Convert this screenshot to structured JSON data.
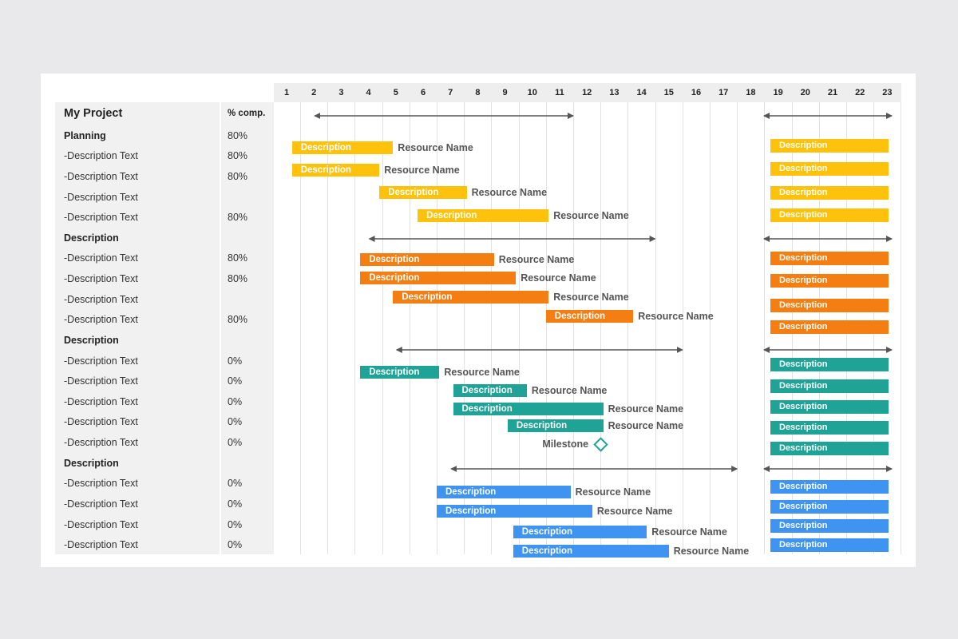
{
  "project": {
    "title": "My Project",
    "pct_header": "% comp."
  },
  "days": [
    "1",
    "2",
    "3",
    "4",
    "5",
    "6",
    "7",
    "8",
    "9",
    "10",
    "11",
    "12",
    "13",
    "14",
    "15",
    "16",
    "17",
    "18",
    "19",
    "20",
    "21",
    "22",
    "23"
  ],
  "colors": {
    "yellow": "#fec20c",
    "orange": "#f57e12",
    "teal": "#1ea396",
    "blue": "#3f93f1",
    "arrow": "#555555"
  },
  "groups": [
    {
      "name": "Planning",
      "pct": "80%",
      "color": "yellow",
      "span": [
        2,
        11
      ],
      "tasks": [
        {
          "label": "-Description Text",
          "pct": "80%",
          "bar": "Description",
          "resource": "Resource Name"
        },
        {
          "label": "-Description Text",
          "pct": "80%",
          "bar": "Description",
          "resource": "Resource Name"
        },
        {
          "label": "-Description Text",
          "pct": "",
          "bar": "Description",
          "resource": "Resource Name"
        },
        {
          "label": "-Description Text",
          "pct": "80%",
          "bar": "Description",
          "resource": "Resource Name"
        }
      ]
    },
    {
      "name": "Description",
      "pct": "",
      "color": "orange",
      "span": [
        4,
        14
      ],
      "tasks": [
        {
          "label": "-Description Text",
          "pct": "80%",
          "bar": "Description",
          "resource": "Resource Name"
        },
        {
          "label": "-Description Text",
          "pct": "80%",
          "bar": "Description",
          "resource": "Resource Name"
        },
        {
          "label": "-Description Text",
          "pct": "",
          "bar": "Description",
          "resource": "Resource Name"
        },
        {
          "label": "-Description Text",
          "pct": "80%",
          "bar": "Description",
          "resource": "Resource Name"
        }
      ]
    },
    {
      "name": "Description",
      "pct": "",
      "color": "teal",
      "span": [
        5,
        15
      ],
      "tasks": [
        {
          "label": "-Description Text",
          "pct": "0%",
          "bar": "Description",
          "resource": "Resource Name"
        },
        {
          "label": "-Description Text",
          "pct": "0%",
          "bar": "Description",
          "resource": "Resource Name"
        },
        {
          "label": "-Description Text",
          "pct": "0%",
          "bar": "Description",
          "resource": "Resource Name"
        },
        {
          "label": "-Description Text",
          "pct": "0%",
          "bar": "Description",
          "resource": "Resource Name"
        },
        {
          "label": "-Description Text",
          "pct": "0%",
          "milestone": "Milestone",
          "milestone_day": 13
        }
      ]
    },
    {
      "name": "Description",
      "pct": "",
      "color": "blue",
      "span": [
        7,
        17
      ],
      "tasks": [
        {
          "label": "-Description Text",
          "pct": "0%",
          "bar": "Description",
          "resource": "Resource Name"
        },
        {
          "label": "-Description Text",
          "pct": "0%",
          "bar": "Description",
          "resource": "Resource Name"
        },
        {
          "label": "-Description Text",
          "pct": "0%",
          "bar": "Description",
          "resource": "Resource Name"
        },
        {
          "label": "-Description Text",
          "pct": "0%",
          "bar": "Description",
          "resource": "Resource Name"
        }
      ]
    }
  ],
  "summary_panel": {
    "span": [
      19,
      23
    ],
    "rows": [
      {
        "color": "yellow",
        "bars": [
          "Description",
          "Description",
          "Description",
          "Description"
        ]
      },
      {
        "color": "orange",
        "bars": [
          "Description",
          "Description",
          "Description",
          "Description"
        ]
      },
      {
        "color": "teal",
        "bars": [
          "Description",
          "Description",
          "Description",
          "Description",
          "Description"
        ]
      },
      {
        "color": "blue",
        "bars": [
          "Description",
          "Description",
          "Description",
          "Description"
        ]
      }
    ]
  }
}
